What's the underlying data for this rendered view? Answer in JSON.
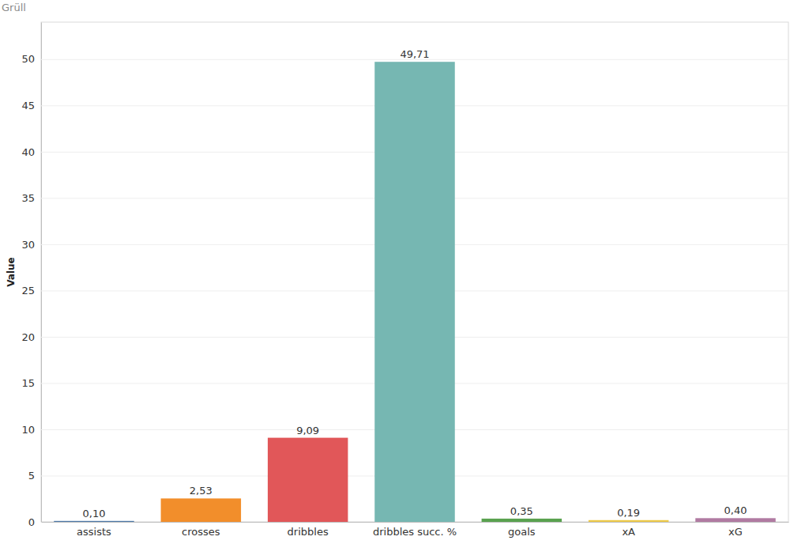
{
  "chart_data": {
    "type": "bar",
    "title": "Grüll",
    "y_label": "Value",
    "categories": [
      "assists",
      "crosses",
      "dribbles",
      "dribbles succ. %",
      "goals",
      "xA",
      "xG"
    ],
    "values": [
      0.1,
      2.53,
      9.09,
      49.71,
      0.35,
      0.19,
      0.4
    ],
    "value_labels": [
      "0,10",
      "2,53",
      "9,09",
      "49,71",
      "0,35",
      "0,19",
      "0,40"
    ],
    "colors": [
      "#4e79a7",
      "#f28e2b",
      "#e15759",
      "#76b7b2",
      "#59a14f",
      "#edc948",
      "#b07aa1"
    ],
    "ylim": [
      0,
      54
    ],
    "yticks": [
      0,
      5,
      10,
      15,
      20,
      25,
      30,
      35,
      40,
      45,
      50
    ],
    "grid": true,
    "data_labels": true
  }
}
